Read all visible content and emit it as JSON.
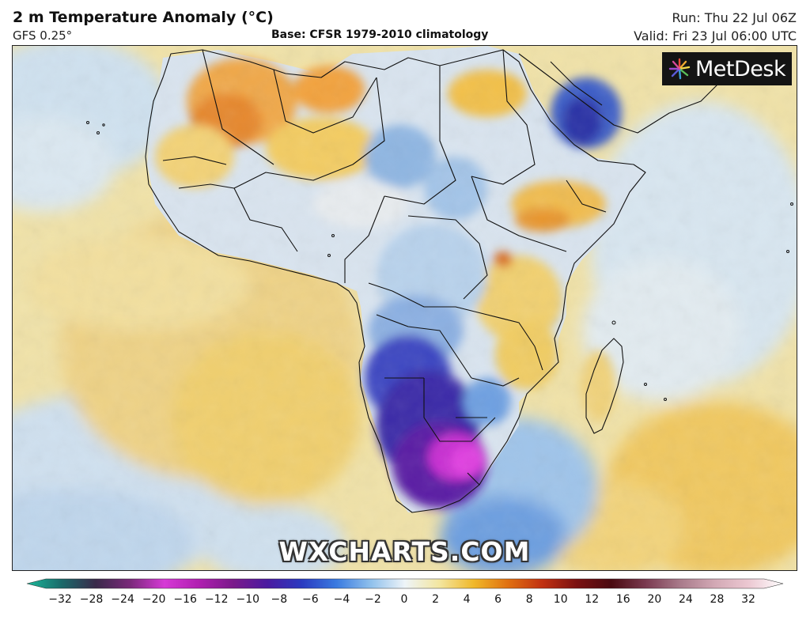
{
  "header": {
    "title": "2 m Temperature Anomaly (°C)",
    "model": "GFS 0.25°",
    "base": "Base: CFSR 1979-2010 climatology",
    "run": "Run: Thu 22 Jul 06Z",
    "valid": "Valid: Fri 23 Jul 06:00 UTC"
  },
  "branding": {
    "logo_text": "MetDesk",
    "logo_icon": "metdesk-starburst-icon",
    "watermark": "WXCHARTS.COM"
  },
  "colorbar": {
    "tick_labels": [
      "−32",
      "−28",
      "−24",
      "−20",
      "−16",
      "−12",
      "−10",
      "−8",
      "−6",
      "−4",
      "−2",
      "0",
      "2",
      "4",
      "6",
      "8",
      "10",
      "12",
      "16",
      "20",
      "24",
      "28",
      "32"
    ],
    "stops": [
      "#1bb89a",
      "#1a6a6a",
      "#3a2a4a",
      "#7a2a7a",
      "#d63ad6",
      "#b01fb0",
      "#7a1a8a",
      "#4a1aa0",
      "#2a3ac0",
      "#3a7ae0",
      "#8fc0ec",
      "#eef4f8",
      "#f3e6a0",
      "#f0b82a",
      "#e07010",
      "#c03010",
      "#7a1010",
      "#4a0a10",
      "#7a3a50",
      "#a87a8a",
      "#d2a8b4",
      "#ecc8d2",
      "#ffffff"
    ]
  },
  "legend_colors": {
    "land_border": "#111111",
    "ocean_background": "#f1e6b6"
  }
}
